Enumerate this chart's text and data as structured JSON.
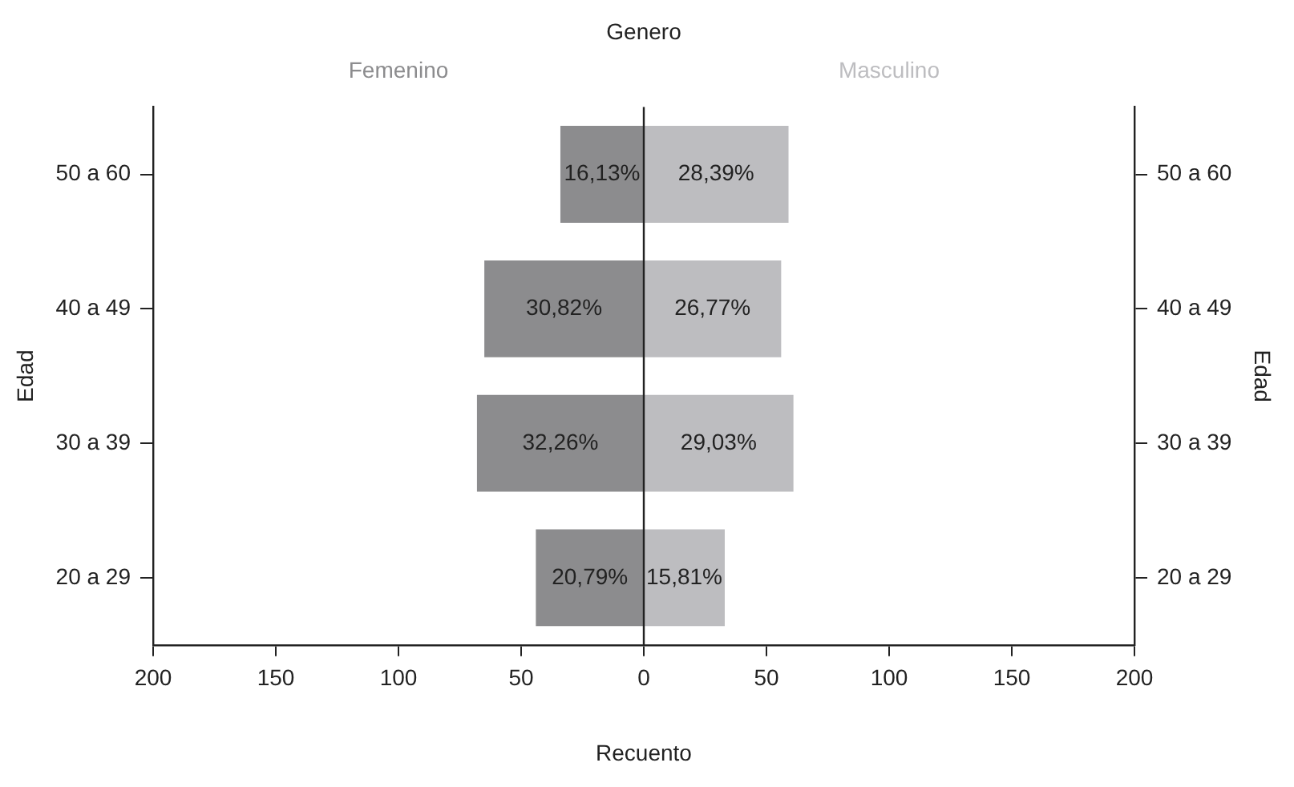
{
  "chart_data": {
    "type": "bar",
    "orientation": "horizontal",
    "stacked": true,
    "title": "Genero",
    "xlabel": "Recuento",
    "ylabel": "Edad",
    "y2label": "Edad",
    "legend": false,
    "grid": false,
    "categories": [
      "50 a 60",
      "40 a 49",
      "30 a 39",
      "20 a 29"
    ],
    "series": [
      {
        "name": "Femenino",
        "color": "#8c8c8e",
        "values": [
          -34,
          -65,
          -68,
          -44
        ]
      },
      {
        "name": "Masculino",
        "color": "#bdbdc0",
        "values": [
          59,
          56,
          61,
          33
        ]
      }
    ],
    "annotations": [
      {
        "text": "16,13%",
        "x": -34,
        "y": "50 a 60"
      },
      {
        "text": "30,82%",
        "x": -65,
        "y": "40 a 49"
      },
      {
        "text": "32,26%",
        "x": -68,
        "y": "30 a 39"
      },
      {
        "text": "20,79%",
        "x": -44,
        "y": "20 a 29"
      },
      {
        "text": "28,39%",
        "x": 59,
        "y": "50 a 60"
      },
      {
        "text": "26,77%",
        "x": 56,
        "y": "40 a 49"
      },
      {
        "text": "29,03%",
        "x": 61,
        "y": "30 a 39"
      },
      {
        "text": "15,81%",
        "x": 33,
        "y": "20 a 29"
      }
    ],
    "xlim": [
      -200,
      200
    ],
    "xticks": [
      {
        "value": -200,
        "label": "200"
      },
      {
        "value": -150,
        "label": "150"
      },
      {
        "value": -100,
        "label": "100"
      },
      {
        "value": -50,
        "label": "50"
      },
      0,
      50,
      100,
      150,
      200
    ],
    "ref_lines": [
      {
        "axis": "x",
        "value": 0,
        "color": "#222222"
      }
    ]
  }
}
